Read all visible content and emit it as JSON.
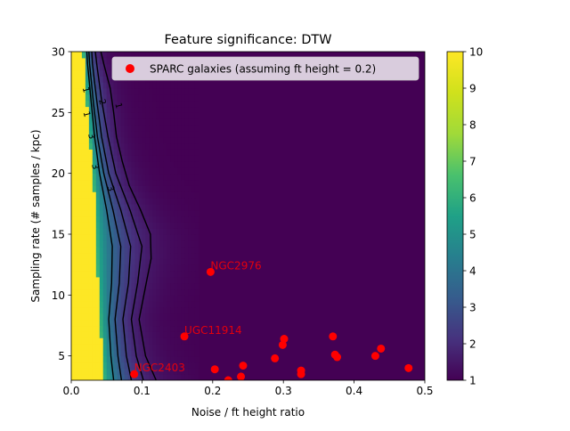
{
  "chart_data": {
    "type": "heatmap",
    "title": "Feature significance: DTW",
    "xlabel": "Noise / ft height ratio",
    "ylabel": "Sampling rate (# samples / kpc)",
    "xlim": [
      0,
      0.5
    ],
    "ylim": [
      3,
      30
    ],
    "xticks": [
      0.0,
      0.1,
      0.2,
      0.3,
      0.4,
      0.5
    ],
    "xtick_labels": [
      "0.0",
      "0.1",
      "0.2",
      "0.3",
      "0.4",
      "0.5"
    ],
    "yticks": [
      5,
      10,
      15,
      20,
      25,
      30
    ],
    "ytick_labels": [
      "5",
      "10",
      "15",
      "20",
      "25",
      "30"
    ],
    "colorbar": {
      "colormap": "viridis",
      "range": [
        1,
        10
      ],
      "ticks": [
        1,
        2,
        3,
        4,
        5,
        6,
        7,
        8,
        9,
        10
      ],
      "tick_labels": [
        "1",
        "2",
        "3",
        "4",
        "5",
        "6",
        "7",
        "8",
        "9",
        "10"
      ]
    },
    "contour_levels": [
      1,
      2,
      3
    ],
    "contour_label_text": [
      "1",
      "2",
      "3"
    ],
    "legend": {
      "label": "SPARC galaxies (assuming ft height = 0.2)",
      "placement": "upper right",
      "marker_color": "#ff0000"
    },
    "boundary_x": [
      [
        3,
        0.046
      ],
      [
        5,
        0.044
      ],
      [
        8,
        0.041
      ],
      [
        12,
        0.037
      ],
      [
        15,
        0.035
      ],
      [
        18,
        0.033
      ],
      [
        20,
        0.031
      ],
      [
        23,
        0.026
      ],
      [
        26,
        0.022
      ],
      [
        28,
        0.019
      ],
      [
        30,
        0.017
      ]
    ],
    "contours": [
      {
        "level": 1,
        "points": [
          [
            3,
            0.12
          ],
          [
            5,
            0.105
          ],
          [
            8,
            0.096
          ],
          [
            11,
            0.106
          ],
          [
            13,
            0.113
          ],
          [
            15,
            0.112
          ],
          [
            17,
            0.098
          ],
          [
            19,
            0.082
          ],
          [
            21,
            0.072
          ],
          [
            23,
            0.064
          ],
          [
            25,
            0.06
          ],
          [
            27,
            0.055
          ],
          [
            29,
            0.046
          ],
          [
            30,
            0.042
          ]
        ]
      },
      {
        "level": 1,
        "points": [
          [
            3,
            0.102
          ],
          [
            5,
            0.092
          ],
          [
            8,
            0.085
          ],
          [
            11,
            0.094
          ],
          [
            14,
            0.1
          ],
          [
            17,
            0.083
          ],
          [
            20,
            0.063
          ],
          [
            23,
            0.052
          ],
          [
            26,
            0.043
          ],
          [
            29,
            0.036
          ],
          [
            30,
            0.034
          ]
        ]
      },
      {
        "level": 2,
        "points": [
          [
            3,
            0.085
          ],
          [
            5,
            0.078
          ],
          [
            8,
            0.073
          ],
          [
            11,
            0.081
          ],
          [
            14,
            0.084
          ],
          [
            17,
            0.07
          ],
          [
            20,
            0.053
          ],
          [
            23,
            0.043
          ],
          [
            26,
            0.036
          ],
          [
            29,
            0.03
          ],
          [
            30,
            0.029
          ]
        ]
      },
      {
        "level": 2,
        "points": [
          [
            3,
            0.071
          ],
          [
            5,
            0.066
          ],
          [
            8,
            0.062
          ],
          [
            11,
            0.068
          ],
          [
            14,
            0.07
          ],
          [
            17,
            0.059
          ],
          [
            20,
            0.046
          ],
          [
            23,
            0.037
          ],
          [
            26,
            0.031
          ],
          [
            29,
            0.026
          ],
          [
            30,
            0.025
          ]
        ]
      },
      {
        "level": 3,
        "points": [
          [
            3,
            0.06
          ],
          [
            5,
            0.056
          ],
          [
            8,
            0.053
          ],
          [
            11,
            0.057
          ],
          [
            14,
            0.058
          ],
          [
            17,
            0.05
          ],
          [
            20,
            0.04
          ],
          [
            23,
            0.033
          ],
          [
            26,
            0.028
          ],
          [
            29,
            0.023
          ],
          [
            30,
            0.022
          ]
        ]
      }
    ],
    "contour_labels": [
      {
        "text": "1",
        "x": 0.063,
        "y": 25.5
      },
      {
        "text": "2",
        "x": 0.04,
        "y": 25.8
      },
      {
        "text": "1",
        "x": 0.017,
        "y": 26.8
      },
      {
        "text": "1",
        "x": 0.018,
        "y": 24.8
      },
      {
        "text": "3",
        "x": 0.025,
        "y": 23.0
      },
      {
        "text": "3",
        "x": 0.052,
        "y": 18.7
      },
      {
        "text": "3",
        "x": 0.03,
        "y": 20.5
      }
    ],
    "points": [
      {
        "x": 0.197,
        "y": 11.9,
        "label": "NGC2976"
      },
      {
        "x": 0.16,
        "y": 6.6,
        "label": "UGC11914"
      },
      {
        "x": 0.089,
        "y": 3.5,
        "label": "NGC2403"
      },
      {
        "x": 0.203,
        "y": 3.9,
        "label": ""
      },
      {
        "x": 0.222,
        "y": 3.0,
        "label": ""
      },
      {
        "x": 0.24,
        "y": 3.3,
        "label": ""
      },
      {
        "x": 0.243,
        "y": 4.2,
        "label": ""
      },
      {
        "x": 0.288,
        "y": 4.8,
        "label": ""
      },
      {
        "x": 0.299,
        "y": 5.9,
        "label": ""
      },
      {
        "x": 0.301,
        "y": 6.4,
        "label": ""
      },
      {
        "x": 0.325,
        "y": 3.8,
        "label": ""
      },
      {
        "x": 0.325,
        "y": 3.5,
        "label": ""
      },
      {
        "x": 0.37,
        "y": 6.6,
        "label": ""
      },
      {
        "x": 0.373,
        "y": 5.1,
        "label": ""
      },
      {
        "x": 0.376,
        "y": 4.9,
        "label": ""
      },
      {
        "x": 0.43,
        "y": 5.0,
        "label": ""
      },
      {
        "x": 0.438,
        "y": 5.6,
        "label": ""
      },
      {
        "x": 0.477,
        "y": 4.0,
        "label": ""
      }
    ]
  }
}
